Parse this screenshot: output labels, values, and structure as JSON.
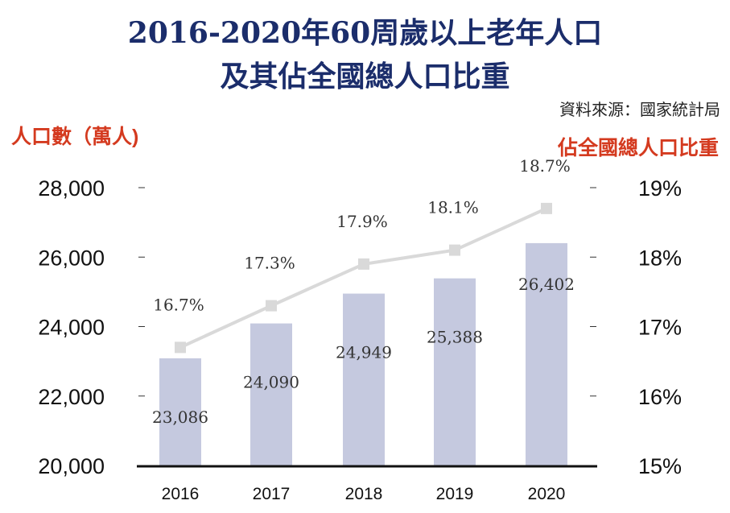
{
  "chart_data": {
    "type": "bar+line",
    "title": "2016-2020年60周歲以上老年人口",
    "subtitle": "及其佔全國總人口比重",
    "source": "資料來源：國家統計局",
    "ylabel": "人口數（萬人)",
    "y2label": "佔全國總人口比重",
    "categories": [
      "2016",
      "2017",
      "2018",
      "2019",
      "2020"
    ],
    "series": [
      {
        "type": "bar",
        "axis": "left",
        "values": [
          23086,
          24090,
          24949,
          25388,
          26402
        ],
        "labels": [
          "23,086",
          "24,090",
          "24,949",
          "25,388",
          "26,402"
        ],
        "color": "#c5c9df"
      },
      {
        "type": "line",
        "axis": "right",
        "values": [
          16.7,
          17.3,
          17.9,
          18.1,
          18.7
        ],
        "labels": [
          "16.7%",
          "17.3%",
          "17.9%",
          "18.1%",
          "18.7%"
        ],
        "color": "#d9d9d9"
      }
    ],
    "ylim": [
      20000,
      28000
    ],
    "yticks": [
      "20,000",
      "22,000",
      "24,000",
      "26,000",
      "28,000"
    ],
    "y2lim": [
      15,
      19
    ],
    "y2ticks": [
      "15%",
      "16%",
      "17%",
      "18%",
      "19%"
    ],
    "grid": false
  }
}
